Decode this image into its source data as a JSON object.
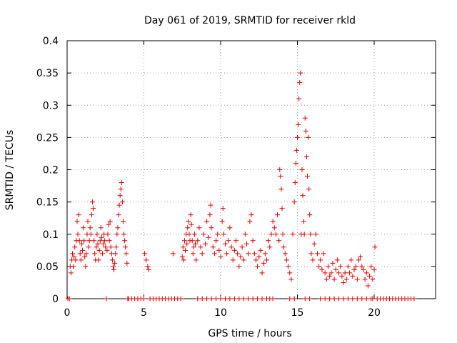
{
  "chart_data": {
    "type": "scatter",
    "title": "Day 061 of 2019, SRMTID for receiver rkld",
    "xlabel": "GPS time / hours",
    "ylabel": "SRMTID / TECUs",
    "xlim": [
      0,
      24
    ],
    "ylim": [
      0,
      0.4
    ],
    "grid": true,
    "marker": "plus",
    "color": "#e00000",
    "xticks": [
      0,
      5,
      10,
      15,
      20
    ],
    "xtick_labels": [
      "0",
      "5",
      "10",
      "15",
      "20"
    ],
    "yticks": [
      0,
      0.05,
      0.1,
      0.15,
      0.2,
      0.25,
      0.3,
      0.35,
      0.4
    ],
    "ytick_labels": [
      "0",
      "0.05",
      "0.1",
      "0.15",
      "0.2",
      "0.25",
      "0.3",
      "0.35",
      "0.4"
    ],
    "series": [
      {
        "name": "rkld",
        "points": [
          [
            0.05,
            0
          ],
          [
            0.15,
            0
          ],
          [
            0.2,
            0.05
          ],
          [
            0.25,
            0.04
          ],
          [
            0.3,
            0.06
          ],
          [
            0.35,
            0.07
          ],
          [
            0.4,
            0.05
          ],
          [
            0.45,
            0.065
          ],
          [
            0.5,
            0.08
          ],
          [
            0.55,
            0.06
          ],
          [
            0.6,
            0.09
          ],
          [
            0.65,
            0.12
          ],
          [
            0.7,
            0.1
          ],
          [
            0.75,
            0.13
          ],
          [
            0.8,
            0.09
          ],
          [
            0.85,
            0.07
          ],
          [
            0.9,
            0.06
          ],
          [
            0.95,
            0.085
          ],
          [
            1.0,
            0.075
          ],
          [
            1.05,
            0.11
          ],
          [
            1.1,
            0.09
          ],
          [
            1.15,
            0.065
          ],
          [
            1.2,
            0.05
          ],
          [
            1.25,
            0.07
          ],
          [
            1.3,
            0.1
          ],
          [
            1.35,
            0.12
          ],
          [
            1.4,
            0.08
          ],
          [
            1.45,
            0.09
          ],
          [
            1.5,
            0.11
          ],
          [
            1.55,
            0.1
          ],
          [
            1.6,
            0.13
          ],
          [
            1.65,
            0.15
          ],
          [
            1.7,
            0.14
          ],
          [
            1.75,
            0.09
          ],
          [
            1.8,
            0.07
          ],
          [
            1.85,
            0.06
          ],
          [
            1.9,
            0.08
          ],
          [
            1.95,
            0.1
          ],
          [
            2.0,
            0.085
          ],
          [
            2.05,
            0.06
          ],
          [
            2.1,
            0.075
          ],
          [
            2.15,
            0.09
          ],
          [
            2.2,
            0.11
          ],
          [
            2.25,
            0.095
          ],
          [
            2.3,
            0.07
          ],
          [
            2.35,
            0.085
          ],
          [
            2.4,
            0.1
          ],
          [
            2.45,
            0.09
          ],
          [
            2.5,
            0.08
          ],
          [
            2.55,
            0.0
          ],
          [
            2.6,
            0.075
          ],
          [
            2.65,
            0.1
          ],
          [
            2.7,
            0.115
          ],
          [
            2.75,
            0.09
          ],
          [
            2.8,
            0.12
          ],
          [
            2.85,
            0.08
          ],
          [
            2.9,
            0.07
          ],
          [
            2.95,
            0.06
          ],
          [
            3.0,
            0.05
          ],
          [
            3.05,
            0.045
          ],
          [
            3.1,
            0.055
          ],
          [
            3.15,
            0.07
          ],
          [
            3.2,
            0.08
          ],
          [
            3.25,
            0.1
          ],
          [
            3.3,
            0.11
          ],
          [
            3.35,
            0.13
          ],
          [
            3.4,
            0.145
          ],
          [
            3.45,
            0.16
          ],
          [
            3.5,
            0.17
          ],
          [
            3.55,
            0.18
          ],
          [
            3.6,
            0.15
          ],
          [
            3.65,
            0.12
          ],
          [
            3.7,
            0.1
          ],
          [
            3.75,
            0.09
          ],
          [
            3.8,
            0.08
          ],
          [
            3.85,
            0.07
          ],
          [
            3.9,
            0.055
          ],
          [
            3.95,
            0.0
          ],
          [
            4.0,
            0
          ],
          [
            4.2,
            0
          ],
          [
            4.4,
            0
          ],
          [
            4.6,
            0
          ],
          [
            4.8,
            0
          ],
          [
            5.0,
            0
          ],
          [
            5.05,
            0.07
          ],
          [
            5.15,
            0.06
          ],
          [
            5.25,
            0.05
          ],
          [
            5.3,
            0.045
          ],
          [
            5.4,
            0
          ],
          [
            5.6,
            0
          ],
          [
            5.8,
            0
          ],
          [
            6.0,
            0
          ],
          [
            6.2,
            0
          ],
          [
            6.4,
            0
          ],
          [
            6.6,
            0
          ],
          [
            6.8,
            0
          ],
          [
            6.9,
            0.07
          ],
          [
            7.0,
            0
          ],
          [
            7.2,
            0
          ],
          [
            7.4,
            0
          ],
          [
            7.5,
            0.065
          ],
          [
            7.55,
            0.08
          ],
          [
            7.6,
            0.06
          ],
          [
            7.65,
            0.09
          ],
          [
            7.7,
            0.075
          ],
          [
            7.75,
            0.1
          ],
          [
            7.8,
            0.085
          ],
          [
            7.85,
            0.11
          ],
          [
            7.9,
            0.12
          ],
          [
            7.95,
            0.1
          ],
          [
            8.0,
            0.09
          ],
          [
            8.05,
            0.13
          ],
          [
            8.1,
            0.115
          ],
          [
            8.15,
            0.09
          ],
          [
            8.2,
            0.07
          ],
          [
            8.25,
            0.08
          ],
          [
            8.3,
            0.1
          ],
          [
            8.35,
            0.085
          ],
          [
            8.4,
            0.06
          ],
          [
            8.5,
            0.09
          ],
          [
            8.6,
            0.11
          ],
          [
            8.7,
            0.08
          ],
          [
            8.8,
            0.07
          ],
          [
            8.9,
            0.1
          ],
          [
            9.0,
            0.085
          ],
          [
            9.1,
            0.12
          ],
          [
            9.2,
            0.095
          ],
          [
            9.3,
            0.13
          ],
          [
            9.35,
            0.145
          ],
          [
            9.4,
            0.11
          ],
          [
            9.5,
            0.08
          ],
          [
            9.6,
            0.07
          ],
          [
            9.7,
            0.09
          ],
          [
            9.8,
            0.1
          ],
          [
            9.9,
            0.075
          ],
          [
            10.0,
            0.065
          ],
          [
            10.1,
            0.12
          ],
          [
            10.15,
            0.14
          ],
          [
            10.2,
            0.1
          ],
          [
            10.3,
            0.085
          ],
          [
            10.4,
            0.07
          ],
          [
            10.5,
            0.09
          ],
          [
            10.6,
            0.11
          ],
          [
            10.7,
            0.08
          ],
          [
            10.8,
            0.06
          ],
          [
            10.9,
            0.075
          ],
          [
            11.0,
            0.09
          ],
          [
            11.1,
            0.07
          ],
          [
            11.2,
            0.05
          ],
          [
            11.3,
            0.065
          ],
          [
            11.4,
            0.08
          ],
          [
            11.5,
            0.06
          ],
          [
            11.6,
            0.1
          ],
          [
            11.7,
            0.085
          ],
          [
            11.8,
            0.07
          ],
          [
            11.9,
            0.12
          ],
          [
            12.0,
            0.13
          ],
          [
            12.1,
            0.09
          ],
          [
            12.2,
            0.07
          ],
          [
            12.3,
            0.06
          ],
          [
            12.4,
            0.05
          ],
          [
            12.5,
            0.065
          ],
          [
            12.6,
            0.075
          ],
          [
            12.7,
            0.04
          ],
          [
            12.8,
            0.055
          ],
          [
            12.9,
            0.07
          ],
          [
            13.0,
            0.06
          ],
          [
            13.1,
            0.09
          ],
          [
            13.2,
            0.08
          ],
          [
            13.3,
            0.1
          ],
          [
            13.4,
            0.12
          ],
          [
            13.5,
            0.11
          ],
          [
            13.6,
            0.1
          ],
          [
            13.7,
            0.13
          ],
          [
            13.8,
            0.09
          ],
          [
            13.85,
            0.2
          ],
          [
            13.9,
            0.19
          ],
          [
            13.95,
            0.17
          ],
          [
            14.0,
            0.14
          ],
          [
            14.05,
            0.1
          ],
          [
            14.1,
            0.08
          ],
          [
            14.2,
            0.07
          ],
          [
            14.3,
            0.06
          ],
          [
            14.4,
            0.05
          ],
          [
            14.5,
            0.04
          ],
          [
            14.6,
            0.03
          ],
          [
            14.7,
            0.1
          ],
          [
            14.8,
            0.15
          ],
          [
            14.85,
            0.18
          ],
          [
            14.9,
            0.21
          ],
          [
            14.95,
            0.23
          ],
          [
            15.0,
            0.25
          ],
          [
            15.05,
            0.27
          ],
          [
            15.1,
            0.31
          ],
          [
            15.15,
            0.335
          ],
          [
            15.2,
            0.35
          ],
          [
            15.25,
            0.1
          ],
          [
            15.3,
            0.2
          ],
          [
            15.35,
            0.16
          ],
          [
            15.4,
            0.12
          ],
          [
            15.45,
            0.1
          ],
          [
            15.5,
            0.28
          ],
          [
            15.55,
            0.26
          ],
          [
            15.6,
            0.22
          ],
          [
            15.65,
            0.19
          ],
          [
            15.7,
            0.25
          ],
          [
            15.75,
            0.17
          ],
          [
            15.8,
            0.13
          ],
          [
            15.85,
            0.1
          ],
          [
            15.9,
            0.07
          ],
          [
            16.0,
            0.06
          ],
          [
            16.1,
            0.085
          ],
          [
            16.2,
            0.1
          ],
          [
            16.3,
            0.07
          ],
          [
            16.4,
            0.05
          ],
          [
            16.5,
            0.06
          ],
          [
            16.6,
            0.045
          ],
          [
            16.7,
            0.07
          ],
          [
            16.8,
            0.04
          ],
          [
            16.9,
            0.03
          ],
          [
            17.0,
            0.05
          ],
          [
            17.1,
            0.035
          ],
          [
            17.2,
            0.04
          ],
          [
            17.3,
            0.055
          ],
          [
            17.4,
            0.03
          ],
          [
            17.5,
            0.045
          ],
          [
            17.6,
            0.06
          ],
          [
            17.7,
            0.04
          ],
          [
            17.8,
            0.05
          ],
          [
            17.9,
            0.035
          ],
          [
            18.0,
            0.025
          ],
          [
            18.1,
            0.04
          ],
          [
            18.2,
            0.03
          ],
          [
            18.3,
            0.05
          ],
          [
            18.4,
            0.04
          ],
          [
            18.5,
            0.06
          ],
          [
            18.6,
            0.035
          ],
          [
            18.7,
            0.045
          ],
          [
            18.8,
            0.05
          ],
          [
            18.9,
            0.03
          ],
          [
            19.0,
            0.06
          ],
          [
            19.1,
            0.065
          ],
          [
            19.2,
            0.05
          ],
          [
            19.3,
            0.045
          ],
          [
            19.4,
            0.03
          ],
          [
            19.5,
            0.04
          ],
          [
            19.6,
            0.02
          ],
          [
            19.7,
            0.035
          ],
          [
            19.8,
            0.05
          ],
          [
            19.9,
            0.03
          ],
          [
            20.0,
            0.045
          ],
          [
            20.05,
            0.08
          ],
          [
            20.2,
            0
          ],
          [
            20.4,
            0
          ],
          [
            20.6,
            0
          ],
          [
            20.8,
            0
          ],
          [
            21.0,
            0
          ],
          [
            21.2,
            0
          ],
          [
            21.4,
            0
          ],
          [
            21.6,
            0
          ],
          [
            21.8,
            0
          ],
          [
            22.0,
            0
          ],
          [
            22.2,
            0
          ],
          [
            22.4,
            0
          ],
          [
            22.6,
            0
          ],
          [
            8.5,
            0
          ],
          [
            8.8,
            0
          ],
          [
            9.1,
            0
          ],
          [
            9.4,
            0
          ],
          [
            9.7,
            0
          ],
          [
            10.0,
            0
          ],
          [
            10.3,
            0
          ],
          [
            10.6,
            0
          ],
          [
            10.9,
            0
          ],
          [
            11.2,
            0
          ],
          [
            11.5,
            0
          ],
          [
            11.8,
            0
          ],
          [
            12.1,
            0
          ],
          [
            12.4,
            0
          ],
          [
            12.7,
            0
          ],
          [
            13.0,
            0
          ],
          [
            13.2,
            0
          ],
          [
            13.4,
            0
          ],
          [
            14.5,
            0
          ],
          [
            14.8,
            0
          ],
          [
            15.5,
            0
          ],
          [
            15.8,
            0
          ],
          [
            16.5,
            0
          ],
          [
            16.8,
            0
          ],
          [
            17.1,
            0
          ],
          [
            17.4,
            0
          ],
          [
            17.7,
            0
          ],
          [
            18.0,
            0
          ],
          [
            18.3,
            0
          ],
          [
            18.6,
            0
          ],
          [
            18.9,
            0
          ],
          [
            19.2,
            0
          ],
          [
            19.5,
            0
          ],
          [
            19.8,
            0
          ],
          [
            19.9,
            0
          ]
        ]
      }
    ]
  }
}
